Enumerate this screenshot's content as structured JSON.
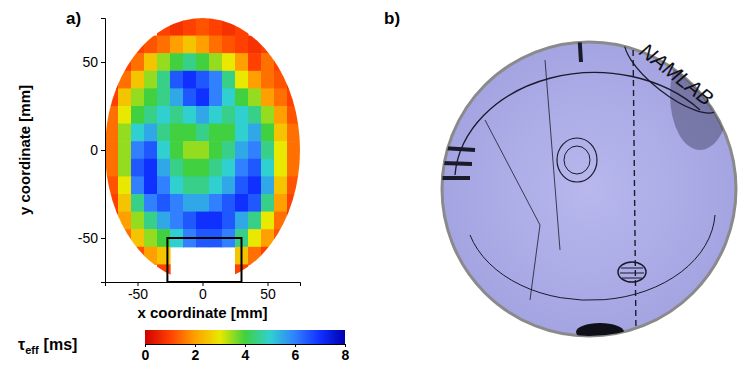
{
  "chart_data": [
    {
      "type": "heatmap",
      "title": "a)",
      "xlabel": "x coordinate [mm]",
      "ylabel": "y coordinate [mm]",
      "xlim": [
        -75,
        75
      ],
      "ylim": [
        -75,
        75
      ],
      "xticks": [
        -50,
        0,
        50
      ],
      "yticks": [
        -50,
        0,
        50
      ],
      "x": [
        -70,
        -60,
        -50,
        -40,
        -30,
        -20,
        -10,
        0,
        10,
        20,
        30,
        40,
        50,
        60,
        70
      ],
      "y": [
        70,
        60,
        50,
        40,
        30,
        20,
        10,
        0,
        -10,
        -20,
        -30,
        -40,
        -50,
        -60,
        -70
      ],
      "z": [
        [
          null,
          null,
          null,
          null,
          1.0,
          0.8,
          1.0,
          1.2,
          1.0,
          0.8,
          1.0,
          null,
          null,
          null,
          null
        ],
        [
          null,
          null,
          1.0,
          1.2,
          1.5,
          2.0,
          2.5,
          2.0,
          1.5,
          1.2,
          1.0,
          0.8,
          1.0,
          null,
          null
        ],
        [
          null,
          1.0,
          1.5,
          2.5,
          3.5,
          4.0,
          4.5,
          4.0,
          3.5,
          3.0,
          2.0,
          1.0,
          1.5,
          1.0,
          null
        ],
        [
          0.8,
          1.5,
          2.5,
          3.5,
          4.5,
          6.5,
          7.0,
          6.5,
          6.0,
          4.5,
          3.0,
          2.0,
          1.5,
          1.2,
          0.8
        ],
        [
          1.0,
          2.5,
          3.5,
          4.0,
          4.5,
          5.5,
          6.5,
          7.0,
          6.0,
          5.0,
          4.0,
          3.5,
          2.0,
          1.5,
          1.0
        ],
        [
          1.5,
          3.0,
          4.0,
          4.5,
          5.0,
          4.5,
          5.0,
          5.5,
          5.0,
          4.5,
          5.0,
          4.5,
          3.5,
          2.0,
          1.2
        ],
        [
          1.5,
          3.5,
          5.0,
          5.5,
          4.5,
          4.0,
          4.0,
          4.5,
          4.0,
          4.0,
          5.0,
          5.5,
          4.0,
          2.5,
          1.5
        ],
        [
          1.5,
          3.5,
          6.0,
          6.5,
          5.0,
          4.0,
          3.5,
          3.5,
          4.0,
          4.5,
          5.5,
          6.0,
          4.5,
          3.0,
          1.5
        ],
        [
          1.5,
          3.5,
          6.5,
          7.0,
          5.5,
          4.5,
          4.0,
          4.0,
          4.5,
          5.0,
          6.0,
          6.5,
          5.0,
          3.0,
          1.5
        ],
        [
          1.2,
          3.0,
          6.0,
          7.0,
          6.0,
          5.0,
          4.5,
          4.5,
          5.0,
          5.5,
          6.5,
          7.0,
          5.5,
          2.5,
          1.2
        ],
        [
          1.0,
          2.5,
          4.5,
          6.0,
          6.5,
          6.0,
          5.5,
          5.5,
          6.0,
          6.5,
          7.0,
          6.5,
          4.5,
          2.0,
          1.0
        ],
        [
          0.8,
          2.0,
          3.5,
          4.5,
          5.5,
          6.0,
          6.5,
          7.0,
          7.0,
          6.5,
          5.5,
          4.5,
          3.0,
          1.5,
          0.8
        ],
        [
          null,
          1.5,
          2.5,
          3.5,
          4.0,
          5.0,
          6.0,
          6.5,
          6.5,
          6.0,
          4.5,
          3.0,
          2.0,
          1.2,
          null
        ],
        [
          null,
          null,
          1.2,
          2.0,
          2.5,
          null,
          null,
          null,
          null,
          null,
          2.5,
          1.5,
          1.0,
          null,
          null
        ],
        [
          null,
          null,
          null,
          null,
          1.0,
          null,
          null,
          null,
          null,
          null,
          1.0,
          null,
          null,
          null,
          null
        ]
      ],
      "annotation_box": {
        "x": [
          -27,
          30
        ],
        "y": [
          -75,
          -50
        ]
      },
      "colorbar": {
        "range": [
          0,
          8
        ],
        "ticks": [
          0,
          2,
          4,
          6,
          8
        ],
        "colors": [
          "#d00000",
          "#ff4000",
          "#ffa000",
          "#e8e800",
          "#40d040",
          "#30d0d0",
          "#3080ff",
          "#1030ff",
          "#0000b0"
        ],
        "label_symbol": "τ",
        "label_subscript": "eff",
        "label_unit": "[ms]"
      }
    },
    {
      "type": "image",
      "title": "b)",
      "text": "NAMLAB"
    }
  ]
}
